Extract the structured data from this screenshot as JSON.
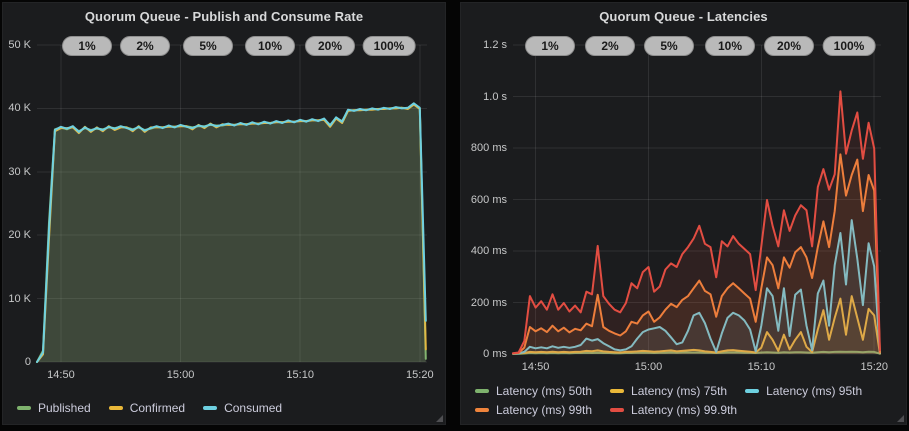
{
  "colors": {
    "green": "#7eb26d",
    "yellow": "#eab839",
    "teal": "#6ed0e0",
    "orange": "#ef843c",
    "red": "#e24d42",
    "panel_bg": "#1b1c1e",
    "page_bg": "#050505",
    "title_text": "#d8d9da",
    "tick_text": "#c7c8c9",
    "badge_bg": "#b9b9b9",
    "badge_text": "#1a1a1a"
  },
  "annotations": [
    "1%",
    "2%",
    "5%",
    "10%",
    "20%",
    "100%"
  ],
  "panels": [
    {
      "title": "Quorum Queue - Publish and Consume Rate"
    },
    {
      "title": "Quorum Queue - Latencies"
    }
  ],
  "chart_data": [
    {
      "type": "area",
      "title": "Quorum Queue - Publish and Consume Rate",
      "x_unit": "minutes after 14:48",
      "y_unit": "messages/s (thousands)",
      "xlim": [
        0,
        32.6
      ],
      "ylim": [
        0,
        50
      ],
      "grid": true,
      "legend_position": "bottom-left",
      "xticks": [
        {
          "t": 2,
          "label": "14:50"
        },
        {
          "t": 12,
          "label": "15:00"
        },
        {
          "t": 22,
          "label": "15:10"
        },
        {
          "t": 32,
          "label": "15:20"
        }
      ],
      "yticks": [
        {
          "v": 0,
          "label": "0"
        },
        {
          "v": 10,
          "label": "10 K"
        },
        {
          "v": 20,
          "label": "20 K"
        },
        {
          "v": 30,
          "label": "30 K"
        },
        {
          "v": 40,
          "label": "40 K"
        },
        {
          "v": 50,
          "label": "50 K"
        }
      ],
      "x": [
        0,
        0.5,
        1,
        1.5,
        2,
        2.5,
        3,
        3.5,
        4,
        4.5,
        5,
        5.5,
        6,
        6.5,
        7,
        7.5,
        8,
        8.5,
        9,
        9.5,
        10,
        10.5,
        11,
        11.5,
        12,
        12.5,
        13,
        13.5,
        14,
        14.5,
        15,
        15.5,
        16,
        16.5,
        17,
        17.5,
        18,
        18.5,
        19,
        19.5,
        20,
        20.5,
        21,
        21.5,
        22,
        22.5,
        23,
        23.5,
        24,
        24.5,
        25,
        25.5,
        26,
        26.5,
        27,
        27.5,
        28,
        28.5,
        29,
        29.5,
        30,
        30.5,
        31,
        31.5,
        32,
        32.5
      ],
      "series": [
        {
          "name": "Published",
          "color": "#7eb26d",
          "values": [
            0,
            1.8,
            22,
            36.7,
            37,
            36.7,
            37.1,
            36.4,
            36.9,
            36.6,
            36.8,
            36.7,
            37,
            36.9,
            37.1,
            37,
            36.7,
            37,
            36.6,
            36.8,
            37.1,
            37,
            37.2,
            37.1,
            37.3,
            37.2,
            37,
            37.2,
            37.2,
            37.4,
            37.3,
            37.3,
            37.5,
            37.4,
            37.6,
            37.5,
            37.7,
            37.6,
            37.8,
            37.7,
            37.9,
            37.8,
            38,
            37.9,
            38.1,
            38,
            38.2,
            38.1,
            38.3,
            37.4,
            38.5,
            38,
            39.7,
            39.7,
            39.8,
            39.8,
            39.9,
            39.9,
            40,
            40,
            40.1,
            40.1,
            40,
            40.7,
            40,
            0.5
          ]
        },
        {
          "name": "Confirmed",
          "color": "#eab839",
          "values": [
            0,
            1.2,
            19.5,
            36.4,
            36.9,
            36.9,
            37,
            36.1,
            37.1,
            36.3,
            37,
            36.4,
            37.2,
            36.6,
            37,
            37,
            36.4,
            37.2,
            36.3,
            37,
            37,
            37,
            37.1,
            37.1,
            37.2,
            37.2,
            36.7,
            37.4,
            36.9,
            37.6,
            37,
            37.5,
            37.4,
            37.4,
            37.5,
            37.5,
            37.6,
            37.6,
            37.7,
            37.7,
            37.8,
            37.8,
            37.9,
            37.9,
            38,
            38,
            38.1,
            38.1,
            38.2,
            37.1,
            38.4,
            37.7,
            39.6,
            39.7,
            39.7,
            39.8,
            39.8,
            39.9,
            39.9,
            40,
            40,
            40.1,
            39.9,
            40.6,
            39.9,
            2
          ]
        },
        {
          "name": "Consumed",
          "color": "#6ed0e0",
          "values": [
            0,
            1.5,
            21,
            36.6,
            37.1,
            36.8,
            37.2,
            36.3,
            37,
            36.5,
            36.9,
            36.6,
            37.1,
            36.8,
            37.2,
            36.9,
            36.6,
            37.1,
            36.5,
            36.9,
            37.2,
            36.9,
            37.3,
            37,
            37.4,
            37.1,
            36.9,
            37.3,
            37.1,
            37.5,
            37.2,
            37.4,
            37.6,
            37.3,
            37.7,
            37.4,
            37.8,
            37.5,
            37.9,
            37.6,
            38,
            37.7,
            38.1,
            37.8,
            38.2,
            37.9,
            38.3,
            38,
            38.4,
            37.3,
            38.6,
            37.9,
            39.8,
            39.6,
            39.9,
            39.7,
            40,
            39.8,
            40.1,
            39.9,
            40.2,
            40,
            40.1,
            40.8,
            40.1,
            6.5
          ]
        }
      ]
    },
    {
      "type": "area",
      "title": "Quorum Queue - Latencies",
      "x_unit": "minutes after 14:48",
      "y_unit": "ms",
      "xlim": [
        0,
        32.6
      ],
      "ylim": [
        0,
        1200
      ],
      "grid": true,
      "legend_position": "bottom-left",
      "xticks": [
        {
          "t": 2,
          "label": "14:50"
        },
        {
          "t": 12,
          "label": "15:00"
        },
        {
          "t": 22,
          "label": "15:10"
        },
        {
          "t": 32,
          "label": "15:20"
        }
      ],
      "yticks": [
        {
          "v": 0,
          "label": "0 ms"
        },
        {
          "v": 200,
          "label": "200 ms"
        },
        {
          "v": 400,
          "label": "400 ms"
        },
        {
          "v": 600,
          "label": "600 ms"
        },
        {
          "v": 800,
          "label": "800 ms"
        },
        {
          "v": 1000,
          "label": "1.0 s"
        },
        {
          "v": 1200,
          "label": "1.2 s"
        }
      ],
      "x": [
        0,
        0.5,
        1,
        1.5,
        2,
        2.5,
        3,
        3.5,
        4,
        4.5,
        5,
        5.5,
        6,
        6.5,
        7,
        7.5,
        8,
        8.5,
        9,
        9.5,
        10,
        10.5,
        11,
        11.5,
        12,
        12.5,
        13,
        13.5,
        14,
        14.5,
        15,
        15.5,
        16,
        16.5,
        17,
        17.5,
        18,
        18.5,
        19,
        19.5,
        20,
        20.5,
        21,
        21.5,
        22,
        22.5,
        23,
        23.5,
        24,
        24.5,
        25,
        25.5,
        26,
        26.5,
        27,
        27.5,
        28,
        28.5,
        29,
        29.5,
        30,
        30.5,
        31,
        31.5,
        32,
        32.5
      ],
      "series": [
        {
          "name": "Latency (ms) 50th",
          "color": "#7eb26d",
          "values": [
            1,
            1,
            2,
            4,
            3,
            4,
            3,
            4,
            3,
            4,
            3,
            4,
            4,
            5,
            4,
            5,
            4,
            4,
            3,
            3,
            4,
            4,
            5,
            5,
            5,
            4,
            5,
            5,
            6,
            5,
            6,
            6,
            6,
            6,
            5,
            5,
            4,
            5,
            6,
            6,
            6,
            5,
            5,
            4,
            6,
            7,
            6,
            5,
            7,
            6,
            7,
            7,
            6,
            5,
            7,
            8,
            7,
            8,
            9,
            8,
            9,
            8,
            7,
            9,
            8,
            1
          ]
        },
        {
          "name": "Latency (ms) 75th",
          "color": "#eab839",
          "values": [
            1,
            2,
            4,
            8,
            7,
            8,
            7,
            9,
            7,
            8,
            7,
            8,
            9,
            12,
            11,
            14,
            10,
            8,
            7,
            6,
            8,
            9,
            10,
            12,
            11,
            9,
            10,
            12,
            14,
            10,
            12,
            14,
            16,
            14,
            10,
            8,
            6,
            10,
            14,
            15,
            13,
            11,
            9,
            6,
            25,
            85,
            55,
            12,
            75,
            18,
            55,
            85,
            28,
            7,
            95,
            170,
            55,
            140,
            215,
            75,
            225,
            140,
            55,
            175,
            150,
            2
          ]
        },
        {
          "name": "Latency (ms) 95th",
          "color": "#6ed0e0",
          "values": [
            1,
            2,
            8,
            28,
            22,
            26,
            22,
            30,
            24,
            28,
            24,
            28,
            35,
            60,
            52,
            58,
            42,
            30,
            18,
            14,
            18,
            30,
            60,
            85,
            95,
            100,
            105,
            90,
            65,
            38,
            45,
            90,
            150,
            160,
            120,
            60,
            8,
            80,
            140,
            160,
            150,
            130,
            95,
            10,
            110,
            255,
            225,
            90,
            255,
            70,
            230,
            250,
            110,
            15,
            235,
            285,
            110,
            345,
            470,
            270,
            520,
            370,
            190,
            430,
            340,
            3
          ]
        },
        {
          "name": "Latency (ms) 99th",
          "color": "#ef843c",
          "values": [
            2,
            4,
            25,
            105,
            88,
            100,
            85,
            110,
            88,
            102,
            84,
            98,
            92,
            118,
            108,
            230,
            105,
            90,
            80,
            72,
            88,
            125,
            118,
            150,
            165,
            125,
            142,
            172,
            195,
            182,
            210,
            225,
            255,
            285,
            245,
            232,
            145,
            225,
            255,
            275,
            255,
            235,
            215,
            125,
            255,
            375,
            345,
            255,
            375,
            335,
            395,
            415,
            375,
            295,
            415,
            515,
            415,
            555,
            775,
            615,
            695,
            755,
            555,
            695,
            635,
            5
          ]
        },
        {
          "name": "Latency (ms) 99.9th",
          "color": "#e24d42",
          "values": [
            3,
            6,
            50,
            225,
            180,
            205,
            172,
            232,
            172,
            198,
            165,
            188,
            162,
            242,
            232,
            420,
            225,
            195,
            172,
            162,
            198,
            275,
            255,
            318,
            338,
            242,
            262,
            328,
            352,
            338,
            388,
            415,
            448,
            498,
            428,
            415,
            298,
            438,
            418,
            458,
            428,
            408,
            388,
            248,
            418,
            598,
            498,
            418,
            558,
            478,
            538,
            578,
            558,
            418,
            648,
            718,
            638,
            698,
            1020,
            778,
            868,
            938,
            758,
            898,
            798,
            15
          ]
        }
      ]
    }
  ]
}
